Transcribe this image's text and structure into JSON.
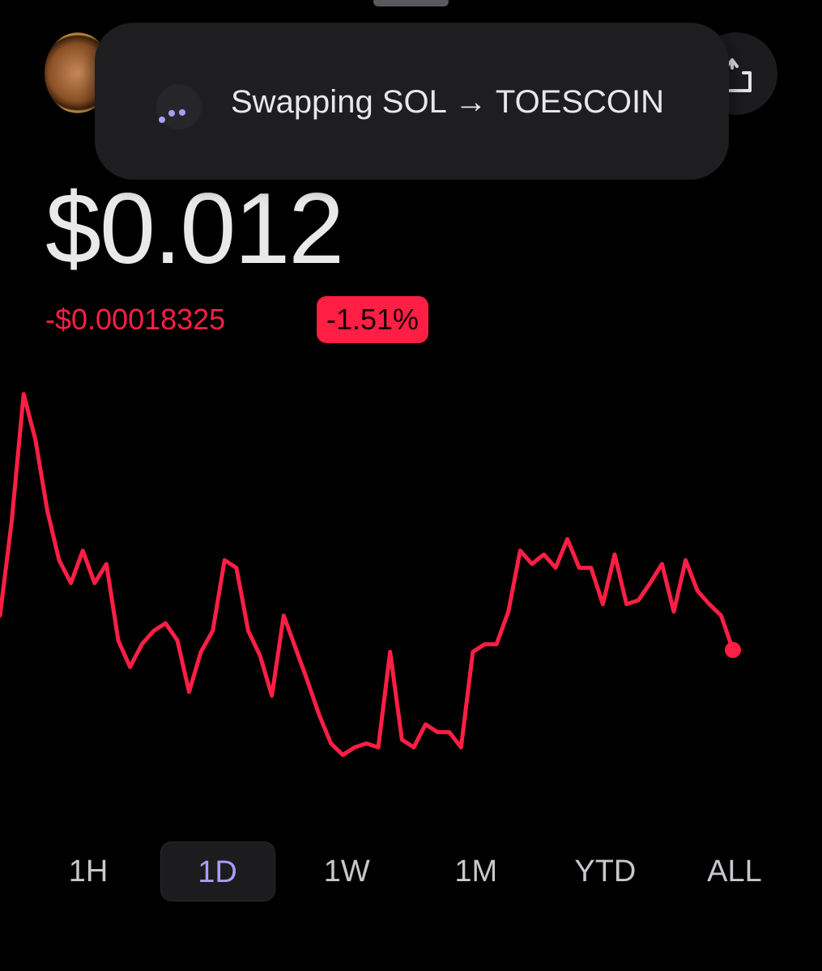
{
  "toast": {
    "text": "Swapping SOL → TOESCOIN"
  },
  "price": "$0.012",
  "change": {
    "amount": "-$0.00018325",
    "percent": "-1.51%"
  },
  "chart_data": {
    "type": "line",
    "color": "#ff1f45",
    "series": [
      {
        "name": null,
        "color": "#ff1f45",
        "values": [
          0.01218,
          0.01268,
          0.01334,
          0.0131,
          0.01273,
          0.01247,
          0.01235,
          0.01252,
          0.01235,
          0.01245,
          0.01205,
          0.01191,
          0.01203,
          0.0121,
          0.01214,
          0.01205,
          0.01178,
          0.01199,
          0.0121,
          0.01247,
          0.01243,
          0.0121,
          0.01197,
          0.01176,
          0.01218,
          0.01201,
          0.01184,
          0.01166,
          0.01151,
          0.01145,
          0.01149,
          0.01151,
          0.01149,
          0.01199,
          0.01153,
          0.01149,
          0.01161,
          0.01157,
          0.01157,
          0.01149,
          0.01199,
          0.01203,
          0.01203,
          0.0122,
          0.01252,
          0.01245,
          0.0125,
          0.01243,
          0.01258,
          0.01243,
          0.01243,
          0.01224,
          0.0125,
          0.01224,
          0.01226,
          0.01235,
          0.01245,
          0.0122,
          0.01247,
          0.01231,
          0.01224,
          0.01218,
          0.012
        ]
      }
    ]
  },
  "ranges": [
    "1H",
    "1D",
    "1W",
    "1M",
    "YTD",
    "ALL"
  ],
  "selected_range": 1
}
